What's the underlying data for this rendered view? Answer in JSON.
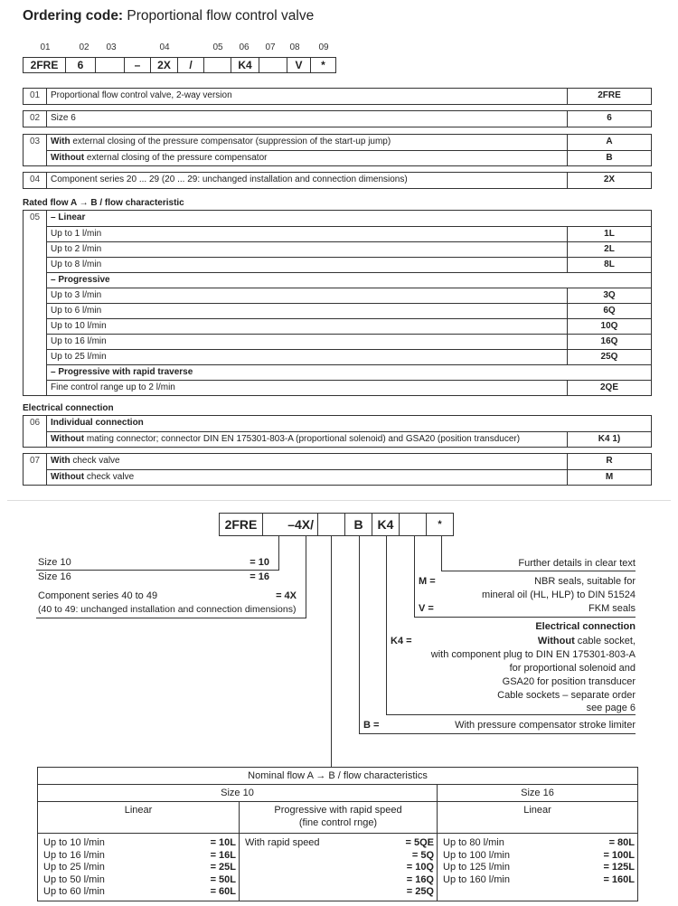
{
  "title": {
    "bold": "Ordering code:",
    "rest": "Proportional flow control valve"
  },
  "code_header": {
    "labels": [
      "01",
      "02",
      "03",
      "04",
      "05",
      "06",
      "07",
      "08",
      "09"
    ],
    "boxes": [
      "2FRE",
      "6",
      "",
      "–",
      "2X",
      "/",
      "",
      "K4",
      "",
      "V",
      "*"
    ]
  },
  "groups": [
    {
      "num": "01",
      "rows": [
        {
          "bold": "",
          "text": "Proportional flow control valve, 2-way version",
          "code": "2FRE"
        }
      ]
    },
    {
      "num": "02",
      "rows": [
        {
          "bold": "",
          "text": "Size 6",
          "code": "6"
        }
      ]
    },
    {
      "num": "03",
      "rows": [
        {
          "bold": "With",
          "text": " external closing of the pressure compensator (suppression of the start-up jump)",
          "code": "A"
        },
        {
          "bold": "Without",
          "text": " external closing of the pressure compensator",
          "code": "B"
        }
      ]
    },
    {
      "num": "04",
      "rows": [
        {
          "bold": "",
          "text": "Component series 20 ... 29 (20 ... 29: unchanged installation and connection dimensions)",
          "code": "2X"
        }
      ]
    },
    {
      "num": "05",
      "rows": [
        {
          "bold": "– Linear",
          "text": "",
          "header": true
        },
        {
          "bold": "",
          "text": "Up to 1 l/min",
          "code": "1L"
        },
        {
          "bold": "",
          "text": "Up to 2 l/min",
          "code": "2L"
        },
        {
          "bold": "",
          "text": "Up to 8 l/min",
          "code": "8L"
        },
        {
          "bold": "– Progressive",
          "text": "",
          "header": true
        },
        {
          "bold": "",
          "text": "Up to 3 l/min",
          "code": "3Q"
        },
        {
          "bold": "",
          "text": "Up to 6 l/min",
          "code": "6Q"
        },
        {
          "bold": "",
          "text": "Up to 10 l/min",
          "code": "10Q"
        },
        {
          "bold": "",
          "text": "Up to 16 l/min",
          "code": "16Q"
        },
        {
          "bold": "",
          "text": "Up to 25 l/min",
          "code": "25Q"
        },
        {
          "bold": "– Progressive with rapid traverse",
          "text": "",
          "header": true
        },
        {
          "bold": "",
          "text": "Fine control range up to 2 l/min",
          "code": "2QE"
        }
      ]
    },
    {
      "num": "06",
      "rows": [
        {
          "bold": "Individual connection",
          "text": "",
          "header": true
        },
        {
          "bold": "Without",
          "text": " mating connector; connector DIN EN 175301-803-A (proportional solenoid) and GSA20 (position transducer)",
          "code": "K4 1)"
        }
      ]
    },
    {
      "num": "07",
      "rows": [
        {
          "bold": "With",
          "text": " check valve",
          "code": "R"
        },
        {
          "bold": "Without",
          "text": " check valve",
          "code": "M"
        }
      ]
    }
  ],
  "sections": {
    "rated_flow": "Rated flow A → B / flow characteristic",
    "electrical": "Electrical connection"
  },
  "diagram": {
    "boxes": [
      "2FRE",
      "–4X/",
      "",
      "B",
      "K4",
      "",
      "*"
    ],
    "size10": "Size 10",
    "size10_code": "= 10",
    "size16": "Size 16",
    "size16_code": "= 16",
    "series": "Component series 40 to 49",
    "series_code": "= 4X",
    "series_note": "(40 to 49: unchanged installation and connection dimensions)",
    "further": "Further details in clear text",
    "m_code": "M =",
    "m_1": "NBR seals, suitable for",
    "m_2": "mineral oil (HL, HLP) to DIN 51524",
    "v_code": "V =",
    "v_1": "FKM seals",
    "elec_title": "Electrical connection",
    "k4_code": "K4 =",
    "k4_bold": "Without",
    "k4_1": " cable socket,",
    "k4_2": "with component plug to DIN EN 175301-803-A",
    "k4_3": "for proportional solenoid and",
    "k4_4": "GSA20 for position transducer",
    "k4_5": "Cable sockets – separate order",
    "k4_6": "see page 6",
    "b_code": "B =",
    "b_1": "With pressure compensator stroke limiter"
  },
  "flow_table": {
    "title": "Nominal flow A → B / flow characteristics",
    "size10": "Size 10",
    "size16": "Size 16",
    "col1": "Linear",
    "col2a": "Progressive with rapid speed",
    "col2b": "(fine control rnge)",
    "col3": "Linear",
    "c1": [
      [
        "Up to 10 l/min",
        "= 10L"
      ],
      [
        "Up to 16 l/min",
        "= 16L"
      ],
      [
        "Up to 25 l/min",
        "= 25L"
      ],
      [
        "Up to 50 l/min",
        "= 50L"
      ],
      [
        "Up to 60 l/min",
        "= 60L"
      ]
    ],
    "c2": [
      [
        "With rapid speed",
        "= 5QE"
      ],
      [
        "",
        "= 5Q"
      ],
      [
        "",
        "= 10Q"
      ],
      [
        "",
        "= 16Q"
      ],
      [
        "",
        "= 25Q"
      ]
    ],
    "c3": [
      [
        "Up to 80 l/min",
        "= 80L"
      ],
      [
        "Up to 100 l/min",
        "= 100L"
      ],
      [
        "Up to 125 l/min",
        "= 125L"
      ],
      [
        "Up to 160 l/min",
        "= 160L"
      ]
    ]
  }
}
